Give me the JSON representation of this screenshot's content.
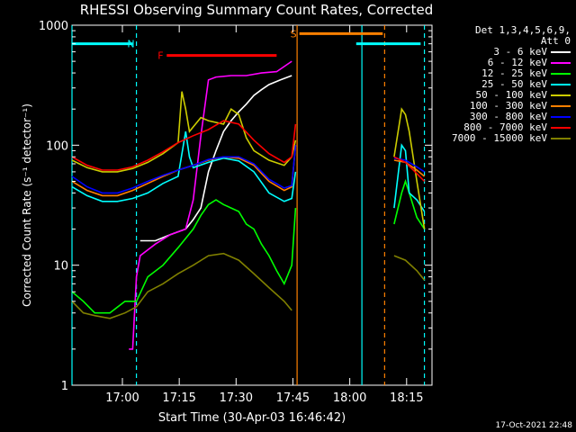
{
  "title": "RHESSI Observing Summary Count Rates, Corrected",
  "timestamp": "17-Oct-2021 22:48",
  "legend_header": [
    "Det 1,3,4,5,6,9,",
    "Att 0"
  ],
  "chart_data": {
    "type": "line",
    "title": "RHESSI Observing Summary Count Rates, Corrected",
    "xlabel": "Start Time (30-Apr-03 16:46:42)",
    "ylabel": "Corrected Count Rate (s⁻¹ detector⁻¹)",
    "yscale": "log",
    "ylim": [
      1,
      1000
    ],
    "xlim_minutes_since_start": [
      0,
      95
    ],
    "x_ticks": [
      {
        "label": "17:00",
        "t": 13.3
      },
      {
        "label": "17:15",
        "t": 28.3
      },
      {
        "label": "17:30",
        "t": 43.3
      },
      {
        "label": "17:45",
        "t": 58.3
      },
      {
        "label": "18:00",
        "t": 73.3
      },
      {
        "label": "18:15",
        "t": 88.3
      }
    ],
    "y_ticks": [
      {
        "label": "1",
        "v": 1
      },
      {
        "label": "10",
        "v": 10
      },
      {
        "label": "100",
        "v": 100
      },
      {
        "label": "1000",
        "v": 1000
      }
    ],
    "grid": false,
    "legend_position": "top-right",
    "flags": [
      {
        "label": "N",
        "color": "#00ffff",
        "segments": [
          [
            0,
            16
          ],
          [
            75,
            92
          ]
        ],
        "value": 700
      },
      {
        "label": "F",
        "color": "#ff0000",
        "segments": [
          [
            25,
            54
          ]
        ],
        "value": 560
      },
      {
        "label": "S",
        "color": "#ff8000",
        "segments": [
          [
            60,
            82
          ]
        ],
        "value": 850
      }
    ],
    "boundaries": [
      {
        "t": 0,
        "color": "#00ffff",
        "style": "solid"
      },
      {
        "t": 17,
        "color": "#00ffff",
        "style": "dashed"
      },
      {
        "t": 59.4,
        "color": "#ff8000",
        "style": "solid"
      },
      {
        "t": 76.5,
        "color": "#00ffff",
        "style": "solid"
      },
      {
        "t": 82.5,
        "color": "#ff8000",
        "style": "dashed"
      },
      {
        "t": 93,
        "color": "#00ffff",
        "style": "dashed"
      }
    ],
    "series": [
      {
        "name": "3 - 6 keV",
        "color": "#ffffff",
        "points": [
          [
            18,
            16
          ],
          [
            22,
            16
          ],
          [
            26,
            18
          ],
          [
            30,
            20
          ],
          [
            32,
            24
          ],
          [
            34,
            30
          ],
          [
            36,
            60
          ],
          [
            38,
            90
          ],
          [
            40,
            130
          ],
          [
            42,
            160
          ],
          [
            44,
            190
          ],
          [
            46,
            220
          ],
          [
            48,
            260
          ],
          [
            50,
            290
          ],
          [
            52,
            320
          ],
          [
            55,
            350
          ],
          [
            58,
            380
          ]
        ]
      },
      {
        "name": "6 - 12 keV",
        "color": "#ff00ff",
        "points": [
          [
            15,
            2
          ],
          [
            16,
            2
          ],
          [
            17,
            8
          ],
          [
            18,
            12
          ],
          [
            22,
            15
          ],
          [
            26,
            18
          ],
          [
            30,
            20
          ],
          [
            32,
            35
          ],
          [
            34,
            120
          ],
          [
            36,
            350
          ],
          [
            38,
            370
          ],
          [
            42,
            380
          ],
          [
            46,
            380
          ],
          [
            50,
            400
          ],
          [
            54,
            410
          ],
          [
            58,
            500
          ]
        ]
      },
      {
        "name": "12 - 25 keV",
        "color": "#00ff00",
        "points": [
          [
            0,
            6
          ],
          [
            3,
            5
          ],
          [
            6,
            4
          ],
          [
            10,
            4
          ],
          [
            14,
            5
          ],
          [
            17,
            5
          ],
          [
            20,
            8
          ],
          [
            24,
            10
          ],
          [
            28,
            14
          ],
          [
            32,
            20
          ],
          [
            34,
            26
          ],
          [
            36,
            32
          ],
          [
            38,
            35
          ],
          [
            40,
            32
          ],
          [
            42,
            30
          ],
          [
            44,
            28
          ],
          [
            46,
            22
          ],
          [
            48,
            20
          ],
          [
            50,
            15
          ],
          [
            52,
            12
          ],
          [
            54,
            9
          ],
          [
            56,
            7
          ],
          [
            58,
            10
          ],
          [
            59,
            30
          ],
          [
            85,
            22
          ],
          [
            87,
            40
          ],
          [
            88,
            50
          ],
          [
            89,
            40
          ],
          [
            91,
            25
          ],
          [
            93,
            20
          ]
        ]
      },
      {
        "name": "25 - 50 keV",
        "color": "#00ffff",
        "points": [
          [
            0,
            45
          ],
          [
            4,
            38
          ],
          [
            8,
            34
          ],
          [
            12,
            34
          ],
          [
            16,
            36
          ],
          [
            20,
            40
          ],
          [
            24,
            48
          ],
          [
            28,
            55
          ],
          [
            30,
            130
          ],
          [
            31,
            80
          ],
          [
            32,
            65
          ],
          [
            36,
            72
          ],
          [
            40,
            78
          ],
          [
            44,
            74
          ],
          [
            48,
            60
          ],
          [
            52,
            40
          ],
          [
            56,
            34
          ],
          [
            58,
            36
          ],
          [
            59,
            60
          ],
          [
            85,
            30
          ],
          [
            87,
            100
          ],
          [
            88,
            90
          ],
          [
            89,
            40
          ],
          [
            91,
            35
          ],
          [
            93,
            28
          ]
        ]
      },
      {
        "name": "50 - 100 keV",
        "color": "#cccc00",
        "points": [
          [
            0,
            75
          ],
          [
            4,
            65
          ],
          [
            8,
            60
          ],
          [
            12,
            60
          ],
          [
            16,
            64
          ],
          [
            20,
            72
          ],
          [
            24,
            85
          ],
          [
            28,
            105
          ],
          [
            29,
            280
          ],
          [
            30,
            200
          ],
          [
            31,
            130
          ],
          [
            34,
            170
          ],
          [
            36,
            160
          ],
          [
            40,
            150
          ],
          [
            42,
            200
          ],
          [
            44,
            180
          ],
          [
            46,
            115
          ],
          [
            48,
            90
          ],
          [
            52,
            75
          ],
          [
            56,
            68
          ],
          [
            58,
            80
          ],
          [
            59,
            110
          ],
          [
            85,
            80
          ],
          [
            87,
            200
          ],
          [
            88,
            180
          ],
          [
            89,
            130
          ],
          [
            91,
            50
          ],
          [
            93,
            20
          ]
        ]
      },
      {
        "name": "100 - 300 keV",
        "color": "#ff8000",
        "points": [
          [
            0,
            50
          ],
          [
            4,
            42
          ],
          [
            8,
            38
          ],
          [
            12,
            38
          ],
          [
            16,
            42
          ],
          [
            20,
            48
          ],
          [
            24,
            55
          ],
          [
            28,
            62
          ],
          [
            32,
            68
          ],
          [
            36,
            75
          ],
          [
            40,
            80
          ],
          [
            44,
            78
          ],
          [
            48,
            68
          ],
          [
            52,
            50
          ],
          [
            56,
            42
          ],
          [
            58,
            45
          ],
          [
            59,
            100
          ],
          [
            85,
            75
          ],
          [
            88,
            72
          ],
          [
            91,
            62
          ],
          [
            93,
            55
          ]
        ]
      },
      {
        "name": "300 - 800 keV",
        "color": "#0000ff",
        "points": [
          [
            0,
            55
          ],
          [
            4,
            45
          ],
          [
            8,
            40
          ],
          [
            12,
            40
          ],
          [
            16,
            44
          ],
          [
            20,
            50
          ],
          [
            24,
            56
          ],
          [
            28,
            62
          ],
          [
            32,
            68
          ],
          [
            36,
            76
          ],
          [
            40,
            80
          ],
          [
            44,
            80
          ],
          [
            48,
            70
          ],
          [
            52,
            52
          ],
          [
            56,
            44
          ],
          [
            58,
            46
          ],
          [
            59,
            100
          ],
          [
            85,
            78
          ],
          [
            88,
            75
          ],
          [
            91,
            66
          ],
          [
            93,
            60
          ]
        ]
      },
      {
        "name": "800 - 7000 keV",
        "color": "#ff0000",
        "points": [
          [
            0,
            80
          ],
          [
            4,
            68
          ],
          [
            8,
            62
          ],
          [
            12,
            62
          ],
          [
            16,
            66
          ],
          [
            20,
            75
          ],
          [
            24,
            88
          ],
          [
            28,
            105
          ],
          [
            32,
            120
          ],
          [
            36,
            135
          ],
          [
            40,
            160
          ],
          [
            44,
            150
          ],
          [
            48,
            110
          ],
          [
            52,
            85
          ],
          [
            56,
            72
          ],
          [
            58,
            80
          ],
          [
            59,
            150
          ],
          [
            85,
            80
          ],
          [
            88,
            72
          ],
          [
            91,
            58
          ],
          [
            93,
            50
          ]
        ]
      },
      {
        "name": "7000 - 15000 keV",
        "color": "#808000",
        "points": [
          [
            0,
            5
          ],
          [
            3,
            4
          ],
          [
            6,
            3.8
          ],
          [
            10,
            3.6
          ],
          [
            14,
            4
          ],
          [
            17,
            4.5
          ],
          [
            20,
            6
          ],
          [
            24,
            7
          ],
          [
            28,
            8.5
          ],
          [
            32,
            10
          ],
          [
            36,
            12
          ],
          [
            40,
            12.5
          ],
          [
            44,
            11
          ],
          [
            48,
            8.5
          ],
          [
            52,
            6.5
          ],
          [
            56,
            5
          ],
          [
            58,
            4.2
          ],
          [
            85,
            12
          ],
          [
            88,
            11
          ],
          [
            91,
            9
          ],
          [
            93,
            7.5
          ]
        ]
      }
    ]
  }
}
